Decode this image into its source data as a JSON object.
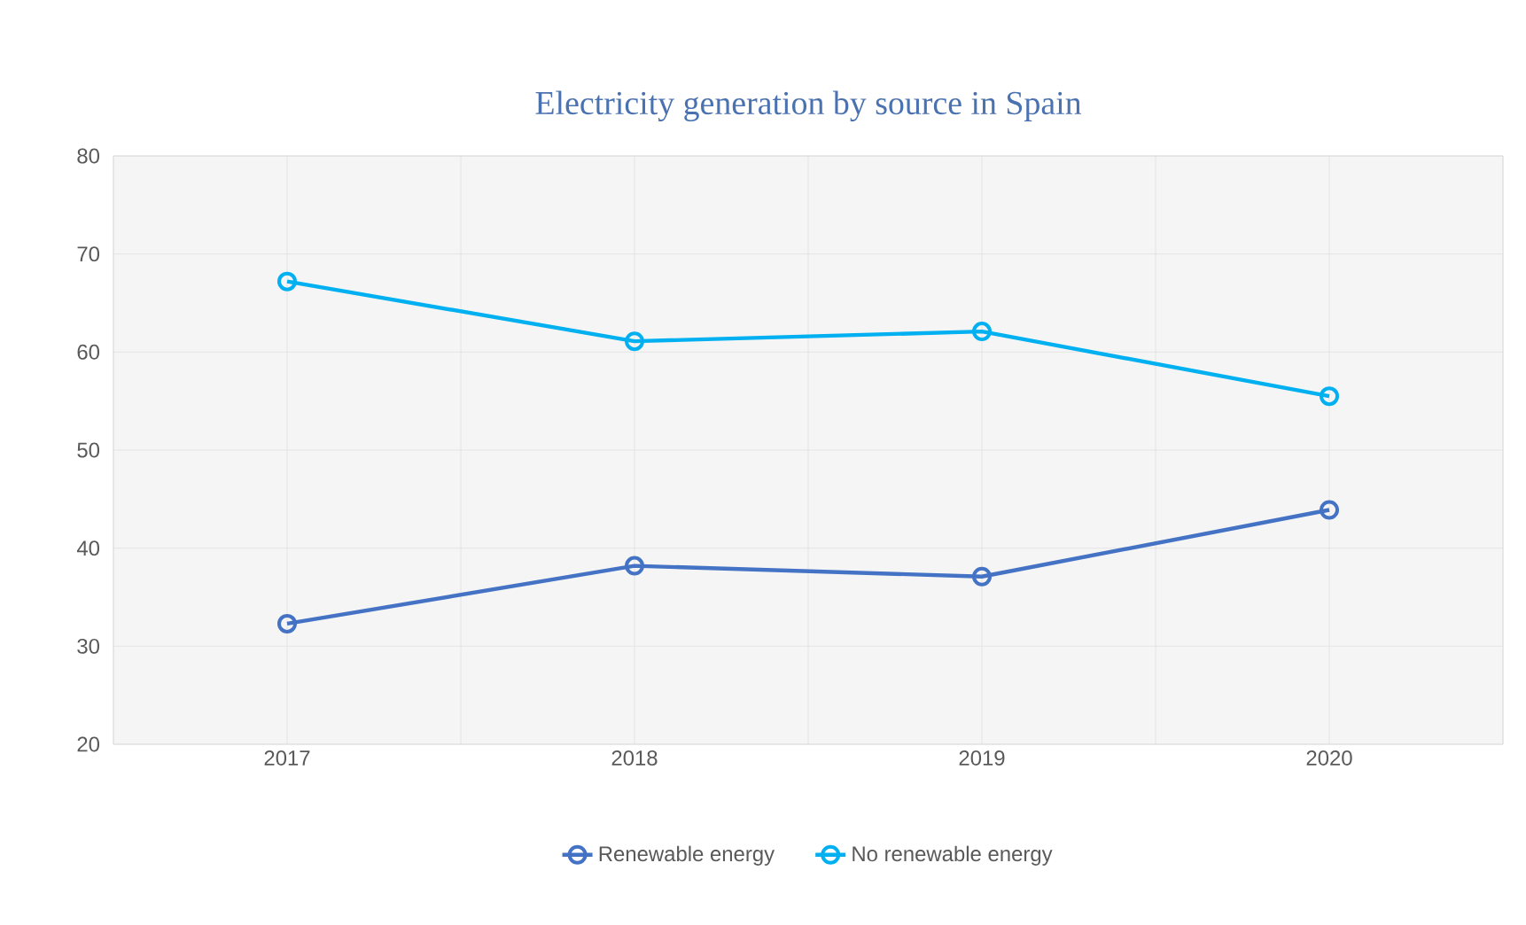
{
  "chart_data": {
    "type": "line",
    "title": "Electricity generation by source in Spain",
    "categories": [
      "2017",
      "2018",
      "2019",
      "2020"
    ],
    "series": [
      {
        "name": "Renewable energy",
        "color": "#4472c4",
        "values": [
          32.3,
          38.2,
          37.1,
          43.9
        ]
      },
      {
        "name": "No renewable energy",
        "color": "#00b0f0",
        "values": [
          67.2,
          61.1,
          62.1,
          55.5
        ]
      }
    ],
    "ylim": [
      20,
      80
    ],
    "yticks": [
      20,
      30,
      40,
      50,
      60,
      70,
      80
    ],
    "grid": true,
    "legend": "bottom",
    "marker": "circle",
    "line_style": "solid"
  }
}
